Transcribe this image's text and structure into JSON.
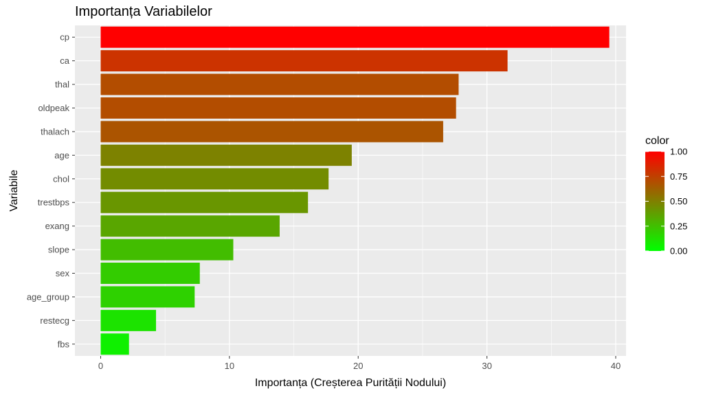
{
  "chart_data": {
    "type": "bar",
    "orientation": "horizontal",
    "title": "Importanța Variabilelor",
    "xlabel": "Importanța (Creșterea Purității Nodului)",
    "ylabel": "Variabile",
    "categories": [
      "cp",
      "ca",
      "thal",
      "oldpeak",
      "thalach",
      "age",
      "chol",
      "trestbps",
      "exang",
      "slope",
      "sex",
      "age_group",
      "restecg",
      "fbs"
    ],
    "values": [
      39.5,
      31.6,
      27.8,
      27.6,
      26.6,
      19.5,
      17.7,
      16.1,
      13.9,
      10.3,
      7.7,
      7.3,
      4.3,
      2.2
    ],
    "color_values": [
      1.0,
      0.8,
      0.7,
      0.7,
      0.67,
      0.49,
      0.45,
      0.41,
      0.35,
      0.26,
      0.2,
      0.18,
      0.11,
      0.06
    ],
    "xlim": [
      -2,
      40.8
    ],
    "x_ticks": [
      "0",
      "10",
      "20",
      "30",
      "40"
    ],
    "x_tick_values": [
      0,
      10,
      20,
      30,
      40
    ],
    "grid": true,
    "legend": {
      "title": "color",
      "placement": "right",
      "ticks": [
        "0.00",
        "0.25",
        "0.50",
        "0.75",
        "1.00"
      ],
      "tick_values": [
        0,
        0.25,
        0.5,
        0.75,
        1.0
      ],
      "low_color": "#00FF00",
      "high_color": "#FF0000"
    },
    "panel_color": "#EBEBEB",
    "grid_color": "#FFFFFF"
  }
}
